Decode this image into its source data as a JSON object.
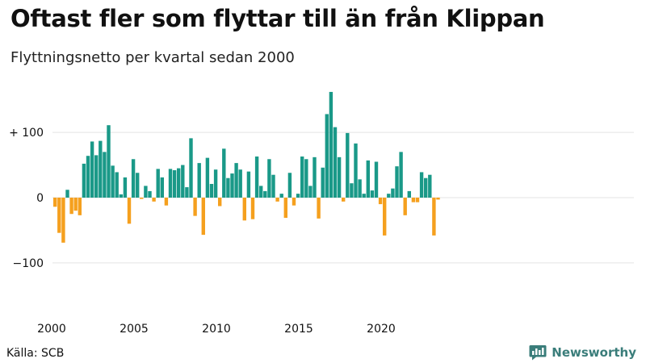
{
  "chart_data": {
    "type": "bar",
    "title": "Oftast fler som flyttar till än från Klippan",
    "subtitle": "Flyttningsnetto per kvartal sedan 2000",
    "source": "Källa: SCB",
    "brand": "Newsworthy",
    "ylim": [
      -150,
      165
    ],
    "yticks": [
      100,
      0,
      -100
    ],
    "ytick_labels": [
      "+ 100",
      "0",
      "−100"
    ],
    "xticks": [
      2000,
      2005,
      2010,
      2015,
      2020
    ],
    "x_start_year": 2000,
    "colors": {
      "positive": "#1a9988",
      "negative": "#f5a01e",
      "grid": "#e3e3e3",
      "brand": "#3a7d7a"
    },
    "values": [
      -14,
      -54,
      -69,
      12,
      -25,
      -20,
      -27,
      52,
      64,
      86,
      65,
      87,
      70,
      111,
      49,
      39,
      5,
      31,
      -40,
      59,
      38,
      -2,
      18,
      10,
      -6,
      44,
      31,
      -12,
      44,
      42,
      45,
      50,
      16,
      91,
      -28,
      53,
      -57,
      61,
      21,
      43,
      -13,
      75,
      30,
      37,
      53,
      43,
      -35,
      40,
      -33,
      63,
      18,
      10,
      59,
      35,
      -6,
      6,
      -31,
      38,
      -12,
      6,
      63,
      59,
      18,
      62,
      -32,
      46,
      128,
      162,
      108,
      62,
      -6,
      99,
      22,
      83,
      28,
      6,
      57,
      11,
      55,
      -10,
      -58,
      6,
      14,
      48,
      70,
      -27,
      10,
      -7,
      -7,
      39,
      30,
      35,
      -58,
      -3
    ]
  }
}
